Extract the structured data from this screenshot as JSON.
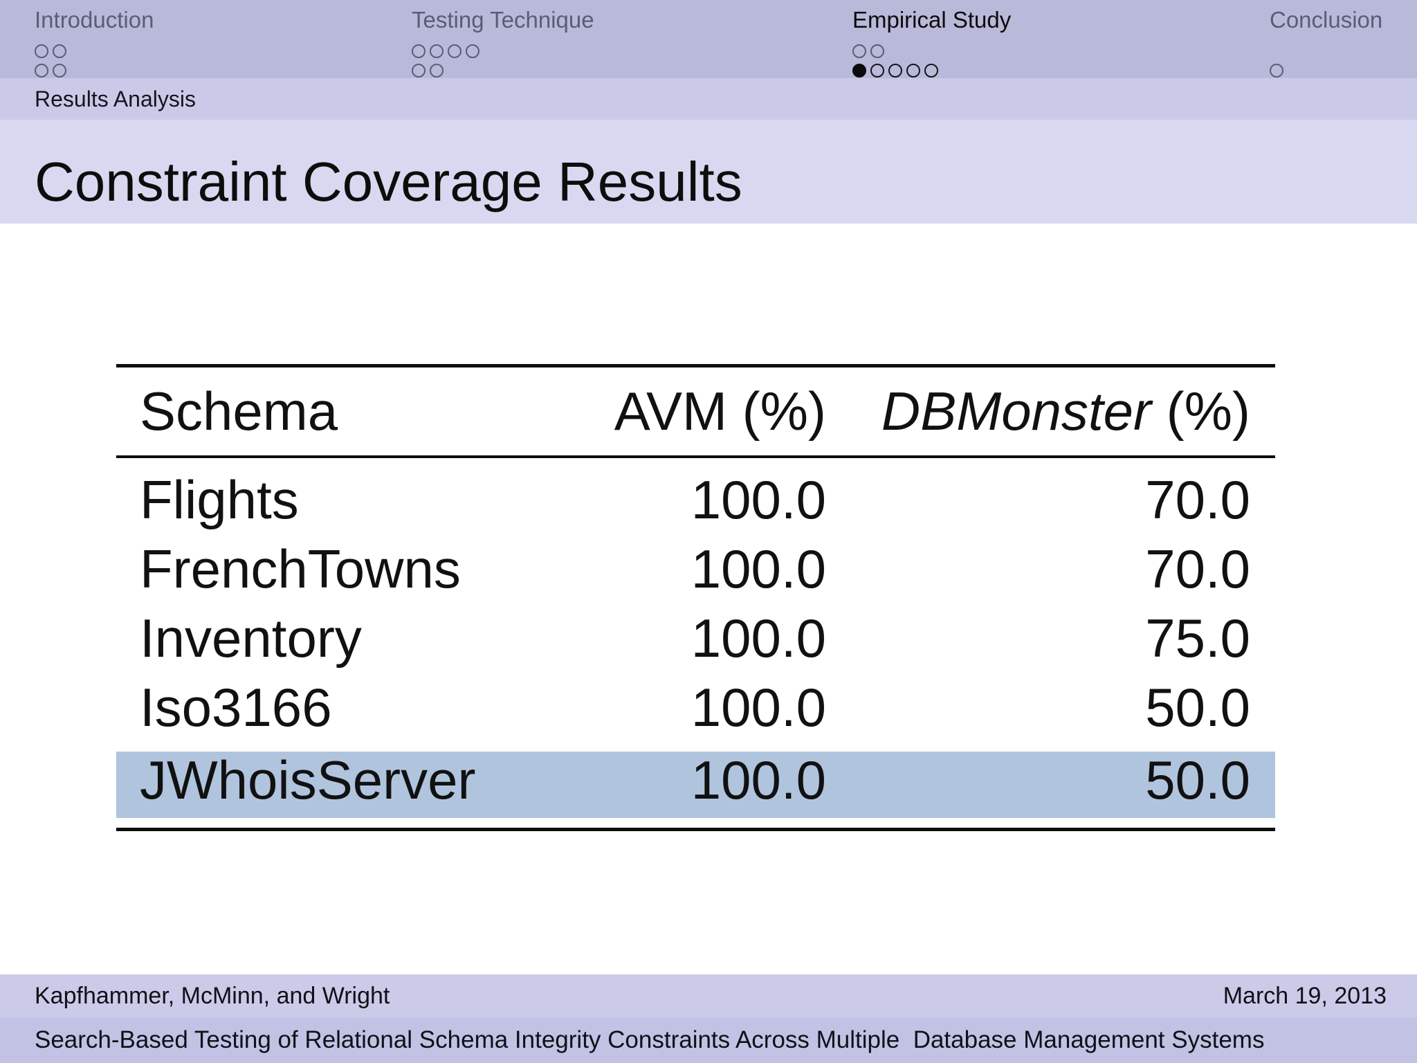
{
  "slide_title": "Constraint Coverage Results",
  "subsection": {
    "label": "Results Analysis"
  },
  "nav": {
    "sections": [
      {
        "label": "Introduction",
        "current": false,
        "dot_rows": [
          [
            "dim",
            "dim"
          ],
          [
            "dim",
            "dim"
          ]
        ]
      },
      {
        "label": "Testing Technique",
        "current": false,
        "dot_rows": [
          [
            "dim",
            "dim",
            "dim",
            "dim"
          ],
          [
            "dim",
            "dim"
          ]
        ]
      },
      {
        "label": "Empirical Study",
        "current": true,
        "dot_rows": [
          [
            "dim",
            "dim"
          ],
          [
            "current",
            "active",
            "active",
            "active",
            "active"
          ]
        ]
      },
      {
        "label": "Conclusion",
        "current": false,
        "dot_rows": [
          [],
          [
            "dim"
          ]
        ]
      }
    ]
  },
  "table": {
    "headers": [
      {
        "name": "Schema",
        "unit": "",
        "italic": false
      },
      {
        "name": "AVM",
        "unit": " (%)",
        "italic": false
      },
      {
        "name": "DBMonster",
        "unit": " (%)",
        "italic": true
      }
    ],
    "rows": [
      {
        "schema": "Flights",
        "avm": "100.0",
        "dbmonster": "70.0",
        "highlight": false
      },
      {
        "schema": "FrenchTowns",
        "avm": "100.0",
        "dbmonster": "70.0",
        "highlight": false
      },
      {
        "schema": "Inventory",
        "avm": "100.0",
        "dbmonster": "75.0",
        "highlight": false
      },
      {
        "schema": "Iso3166",
        "avm": "100.0",
        "dbmonster": "50.0",
        "highlight": false
      },
      {
        "schema": "JWhoisServer",
        "avm": "100.0",
        "dbmonster": "50.0",
        "highlight": true
      }
    ]
  },
  "footer": {
    "authors": "Kapfhammer, McMinn, and Wright",
    "date": "March 19, 2013",
    "talk_title": "Search-Based Testing of Relational Schema Integrity Constraints Across Multiple  Database Management Systems"
  },
  "colors": {
    "nav_bar": "#b9b9da",
    "subsection_bar": "#cacae8",
    "title_band": "#d8d8f0",
    "highlight_row": "#b0c4de",
    "author_bar": "#cbcbe9",
    "bottom_bar": "#c2c2e4",
    "dimmed_text": "#5c5c78"
  }
}
